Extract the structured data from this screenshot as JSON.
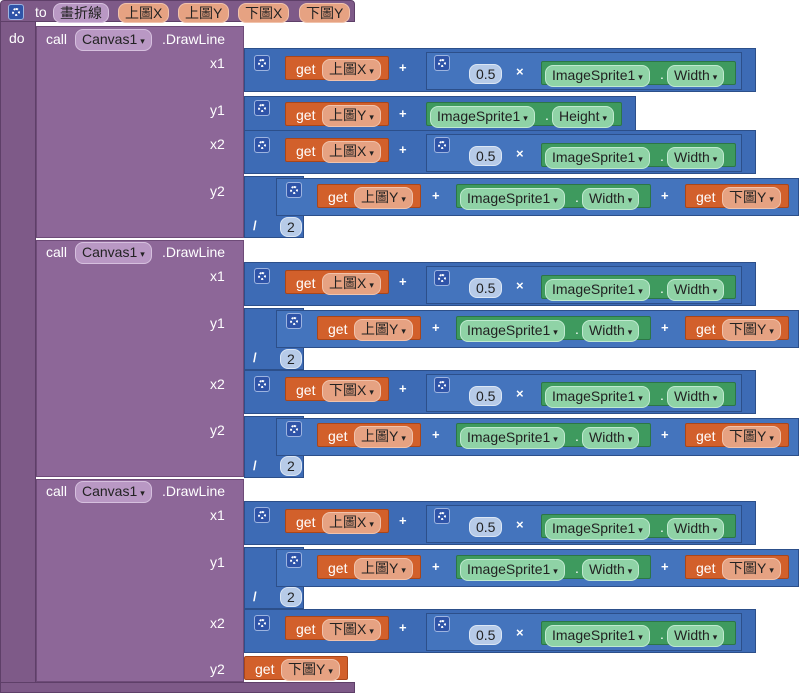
{
  "procedure": {
    "to_label": "to",
    "name": "畫折線",
    "params": [
      "上圖X",
      "上圖Y",
      "下圖X",
      "下圖Y"
    ],
    "do_label": "do"
  },
  "labels": {
    "call": "call",
    "component": "Canvas1",
    "method": ".DrawLine",
    "x1": "x1",
    "y1": "y1",
    "x2": "x2",
    "y2": "y2",
    "get": "get",
    "image_sprite": "ImageSprite1",
    "dot": ".",
    "width": "Width",
    "height": "Height",
    "plus": "+",
    "times": "×",
    "divide": "/",
    "half": "0.5",
    "two": "2"
  },
  "colors": {
    "procedure": "#7e5a88",
    "math": "#3d6bb5",
    "variable": "#d2602b",
    "component": "#3e9a5e"
  }
}
